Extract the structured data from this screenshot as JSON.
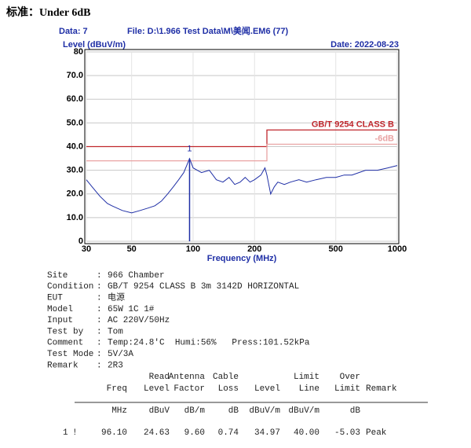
{
  "header": {
    "title": "标准：Under 6dB"
  },
  "chart_data": {
    "type": "line",
    "data_label": "Data: 7",
    "file_label": "File: D:\\1.966 Test Data\\M\\美闻.EM6  (77)",
    "date_label": "Date: 2022-08-23",
    "ylabel": "Level (dBuV/m)",
    "xlabel": "Frequency (MHz)",
    "xscale": "log",
    "grid": true,
    "xlim": [
      30,
      1000
    ],
    "ylim": [
      0,
      80
    ],
    "xticks": [
      30,
      50,
      100,
      200,
      500,
      1000
    ],
    "yticks": [
      0,
      {
        "value": 10,
        "label": "10.0"
      },
      {
        "value": 20,
        "label": "20.0"
      },
      {
        "value": 30,
        "label": "30.0"
      },
      {
        "value": 40,
        "label": "40.0"
      },
      {
        "value": 50,
        "label": "50.0"
      },
      {
        "value": 60,
        "label": "60.0"
      },
      {
        "value": 70,
        "label": "70.0"
      },
      80
    ],
    "series": [
      {
        "name": "GB/T 9254 CLASS B",
        "color": "#c0272d",
        "x": [
          30,
          230,
          230,
          1000
        ],
        "values": [
          40,
          40,
          47,
          47
        ]
      },
      {
        "name": "-6dB",
        "color": "#e9a3a3",
        "x": [
          30,
          230,
          230,
          1000
        ],
        "values": [
          34,
          34,
          41,
          41
        ]
      },
      {
        "name": "Trace",
        "color": "#1f2fa6",
        "legend": false,
        "x": [
          30,
          32,
          35,
          38,
          40,
          45,
          50,
          55,
          60,
          65,
          70,
          75,
          80,
          85,
          90,
          96.1,
          100,
          110,
          120,
          130,
          140,
          150,
          160,
          170,
          180,
          190,
          200,
          215,
          225,
          230,
          240,
          250,
          260,
          280,
          300,
          330,
          360,
          400,
          450,
          500,
          550,
          600,
          700,
          800,
          900,
          1000
        ],
        "values": [
          26,
          23,
          19,
          16,
          15,
          13,
          12,
          13,
          14,
          15,
          17,
          20,
          23,
          26,
          29,
          34.97,
          31,
          29,
          30,
          26,
          25,
          27,
          24,
          25,
          27,
          25,
          26,
          28,
          31,
          28,
          20,
          23,
          25,
          24,
          25,
          26,
          25,
          26,
          27,
          27,
          28,
          28,
          30,
          30,
          31,
          32
        ]
      }
    ],
    "marker": {
      "label": "1",
      "x": 96.1,
      "value": 34.97
    }
  },
  "info": {
    "separator": ":",
    "lines": [
      {
        "label": "Site",
        "value": "966 Chamber"
      },
      {
        "label": "Condition",
        "value": "GB/T 9254 CLASS B 3m 3142D HORIZONTAL"
      },
      {
        "label": "EUT",
        "value": "电源"
      },
      {
        "label": "Model",
        "value": "65W 1C 1#"
      },
      {
        "label": "Input",
        "value": "AC 220V/50Hz"
      },
      {
        "label": "Test by",
        "value": "Tom"
      },
      {
        "label": "Comment",
        "value": "Temp:24.8'C  Humi:56%   Press:101.52kPa"
      },
      {
        "label": "Test Mode",
        "value": "5V/3A"
      },
      {
        "label": "Remark",
        "value": "2R3"
      }
    ]
  },
  "table": {
    "columns": [
      {
        "name": "Freq",
        "unit": "MHz"
      },
      {
        "top": "Read",
        "name": "Level",
        "unit": "dBuV"
      },
      {
        "top": "Antenna",
        "name": "Factor",
        "unit": "dB/m"
      },
      {
        "top": "Cable",
        "name": "Loss",
        "unit": "dB"
      },
      {
        "name": "Level",
        "unit": "dBuV/m"
      },
      {
        "top": "Limit",
        "name": "Line",
        "unit": "dBuV/m"
      },
      {
        "top": "Over",
        "name": "Limit",
        "unit": "dB"
      },
      {
        "name": "Remark"
      }
    ],
    "rows": [
      {
        "no": "1",
        "flag": "!",
        "cells": [
          "96.10",
          "24.63",
          "9.60",
          "0.74",
          "34.97",
          "40.00",
          "-5.03",
          "Peak"
        ]
      }
    ]
  }
}
